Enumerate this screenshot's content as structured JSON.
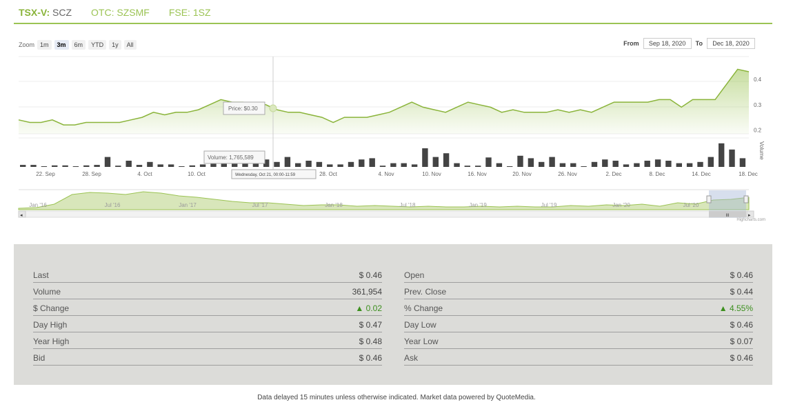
{
  "tabs": [
    {
      "exchange": "TSX-V:",
      "ticker": "SCZ"
    },
    {
      "exchange": "OTC:",
      "ticker": "SZSMF"
    },
    {
      "exchange": "FSE:",
      "ticker": "1SZ"
    }
  ],
  "zoom": {
    "label": "Zoom",
    "buttons": [
      "1m",
      "3m",
      "6m",
      "YTD",
      "1y",
      "All"
    ],
    "active": "3m"
  },
  "range": {
    "from_label": "From",
    "from_value": "Sep 18, 2020",
    "to_label": "To",
    "to_value": "Dec 18, 2020"
  },
  "chart_data": {
    "type": "area",
    "price": {
      "y_ticks": [
        "0.4",
        "0.3",
        "0.2"
      ],
      "ylim": [
        0.185,
        0.49
      ],
      "values": [
        0.24,
        0.23,
        0.23,
        0.24,
        0.22,
        0.22,
        0.23,
        0.23,
        0.23,
        0.23,
        0.24,
        0.25,
        0.27,
        0.26,
        0.27,
        0.27,
        0.28,
        0.3,
        0.32,
        0.31,
        0.31,
        0.3,
        0.3,
        0.28,
        0.27,
        0.27,
        0.26,
        0.25,
        0.23,
        0.25,
        0.25,
        0.25,
        0.26,
        0.27,
        0.29,
        0.31,
        0.29,
        0.28,
        0.27,
        0.29,
        0.31,
        0.3,
        0.29,
        0.27,
        0.28,
        0.27,
        0.27,
        0.27,
        0.28,
        0.27,
        0.28,
        0.27,
        0.29,
        0.31,
        0.31,
        0.31,
        0.31,
        0.32,
        0.32,
        0.29,
        0.32,
        0.32,
        0.32,
        0.38,
        0.44,
        0.43
      ],
      "color": "#8ab43a"
    },
    "volume": {
      "axis_label": "Volume",
      "values": [
        0.08,
        0.08,
        0,
        0.06,
        0.06,
        0,
        0.06,
        0.08,
        0.4,
        0.05,
        0.25,
        0.08,
        0.2,
        0.1,
        0.1,
        0,
        0.06,
        0.1,
        0.3,
        0.15,
        0.3,
        0.2,
        0.3,
        0.3,
        0.2,
        0.4,
        0.15,
        0.25,
        0.2,
        0.1,
        0.1,
        0.2,
        0.3,
        0.35,
        0.05,
        0.15,
        0.15,
        0.1,
        0.75,
        0.4,
        0.55,
        0.15,
        0.05,
        0.05,
        0.38,
        0.15,
        0,
        0.45,
        0.35,
        0.2,
        0.4,
        0.15,
        0.15,
        0,
        0.2,
        0.3,
        0.25,
        0.1,
        0.15,
        0.25,
        0.3,
        0.25,
        0.15,
        0.15,
        0.2,
        0.4,
        0.95,
        0.7,
        0.35
      ],
      "color": "#444"
    },
    "x_ticks": [
      "22. Sep",
      "28. Sep",
      "4. Oct",
      "10. Oct",
      "16. Oct",
      "22. Oct",
      "28. Oct",
      "4. Nov",
      "10. Nov",
      "16. Nov",
      "20. Nov",
      "26. Nov",
      "2. Dec",
      "8. Dec",
      "14. Dec",
      "18. Dec"
    ],
    "tooltip_price": "Price: $0.30",
    "tooltip_volume": "Volume: 1,765,589",
    "tooltip_date": "Wednesday, Oct 21, 00:00-11:59",
    "navigator_labels": [
      "Jan '16",
      "Jul '16",
      "Jan '17",
      "Jul '17",
      "Jan '18",
      "Jul '18",
      "Jan '19",
      "Jul '19",
      "Jan '20",
      "Jul '20"
    ],
    "navigator_values": [
      0.02,
      0.03,
      0.08,
      0.22,
      0.25,
      0.24,
      0.22,
      0.26,
      0.24,
      0.2,
      0.18,
      0.15,
      0.12,
      0.1,
      0.1,
      0.08,
      0.06,
      0.07,
      0.07,
      0.05,
      0.06,
      0.05,
      0.04,
      0.05,
      0.04,
      0.04,
      0.05,
      0.04,
      0.05,
      0.04,
      0.04,
      0.06,
      0.05,
      0.07,
      0.06,
      0.08,
      0.05,
      0.1,
      0.08,
      0.14,
      0.15,
      0.18
    ]
  },
  "scrollbar_thumb": "III",
  "credits": "Highcharts.com",
  "quotes_left": [
    {
      "label": "Last",
      "value": "$ 0.46"
    },
    {
      "label": "Volume",
      "value": "361,954"
    },
    {
      "label": "$ Change",
      "value": "▲ 0.02",
      "up": true
    },
    {
      "label": "Day High",
      "value": "$ 0.47"
    },
    {
      "label": "Year High",
      "value": "$ 0.48"
    },
    {
      "label": "Bid",
      "value": "$ 0.46"
    }
  ],
  "quotes_right": [
    {
      "label": "Open",
      "value": "$ 0.46"
    },
    {
      "label": "Prev. Close",
      "value": "$ 0.44"
    },
    {
      "label": "% Change",
      "value": "▲ 4.55%",
      "up": true
    },
    {
      "label": "Day Low",
      "value": "$ 0.46"
    },
    {
      "label": "Year Low",
      "value": "$ 0.07"
    },
    {
      "label": "Ask",
      "value": "$ 0.46"
    }
  ],
  "footer": "Data delayed 15 minutes unless otherwise indicated. Market data powered by QuoteMedia."
}
